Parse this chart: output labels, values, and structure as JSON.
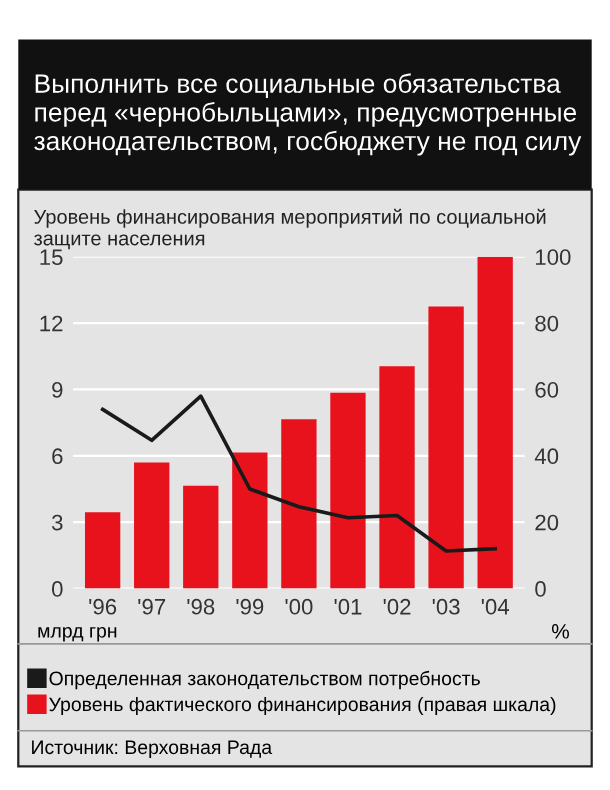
{
  "chart_data": {
    "type": "bar",
    "title": "Выполнить все социальные обязательства перед «чернобыльцами», предусмотренные законодательством, госбюджету не под силу",
    "subtitle": "Уровень финансирования мероприятий по социальной защите населения",
    "categories": [
      "'96",
      "'97",
      "'98",
      "'99",
      "'00",
      "'01",
      "'02",
      "'03",
      "'04"
    ],
    "series": [
      {
        "name": "Определенная законодательством потребность",
        "type": "line",
        "axis": "y",
        "color": "#1a1a1a",
        "values": [
          8.1,
          6.7,
          8.7,
          4.5,
          3.7,
          3.2,
          3.3,
          1.7,
          1.8
        ]
      },
      {
        "name": "Уровень фактического финансирования (правая шкала)",
        "axis": "y2",
        "color": "#e8121d",
        "values": [
          23,
          38,
          31,
          41,
          51,
          59,
          67,
          85,
          100
        ]
      }
    ],
    "ylabel": "млрд грн",
    "y2label": "%",
    "ylim": [
      0,
      15
    ],
    "yticks": [
      0,
      3,
      6,
      9,
      12,
      15
    ],
    "y2lim": [
      0,
      100
    ],
    "y2ticks": [
      0,
      20,
      40,
      60,
      80,
      100
    ],
    "grid": "y",
    "legend": "bottom",
    "annotations": [
      "Источник: Верховная Рада"
    ]
  }
}
